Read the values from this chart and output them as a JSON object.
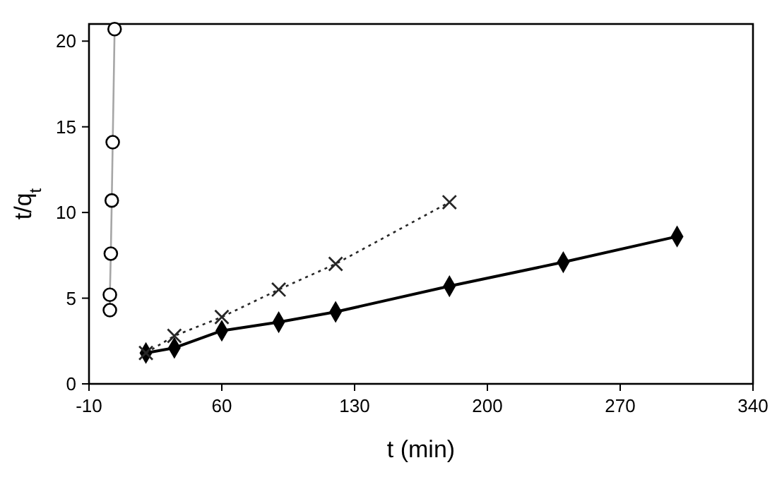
{
  "chart_data": {
    "type": "line",
    "xlabel": "t (min)",
    "ylabel": "t/q$_{t}$",
    "xlim": [
      -10,
      340
    ],
    "xticks": [
      -10,
      60,
      130,
      200,
      270,
      340
    ],
    "ylim": [
      0,
      21
    ],
    "yticks": [
      0,
      5,
      10,
      15,
      20
    ],
    "grid": false,
    "series": [
      {
        "color": "#a6a6a6",
        "marker": "circle",
        "line_style": "solid",
        "x": [
          1,
          1,
          1.5,
          2,
          2.5,
          3.5
        ],
        "values": [
          4.3,
          5.2,
          7.6,
          10.7,
          14.1,
          20.7
        ]
      },
      {
        "color": "#262626",
        "marker": "cross",
        "line_style": "dotted",
        "x": [
          20,
          35,
          60,
          90,
          120,
          180
        ],
        "values": [
          1.8,
          2.8,
          3.9,
          5.5,
          7.0,
          10.6
        ]
      },
      {
        "color": "#000000",
        "marker": "diamond",
        "line_style": "solid",
        "x": [
          20,
          35,
          60,
          90,
          120,
          180,
          240,
          300
        ],
        "values": [
          1.8,
          2.1,
          3.1,
          3.6,
          4.2,
          5.7,
          7.1,
          8.6
        ]
      }
    ]
  }
}
